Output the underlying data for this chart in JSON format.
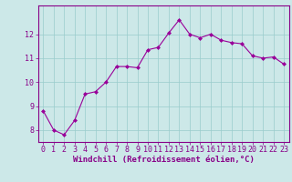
{
  "x": [
    0,
    1,
    2,
    3,
    4,
    5,
    6,
    7,
    8,
    9,
    10,
    11,
    12,
    13,
    14,
    15,
    16,
    17,
    18,
    19,
    20,
    21,
    22,
    23
  ],
  "y": [
    8.8,
    8.0,
    7.8,
    8.4,
    9.5,
    9.6,
    10.0,
    10.65,
    10.65,
    10.6,
    11.35,
    11.45,
    12.05,
    12.6,
    12.0,
    11.85,
    12.0,
    11.75,
    11.65,
    11.6,
    11.1,
    11.0,
    11.05,
    10.75
  ],
  "line_color": "#990099",
  "marker": "D",
  "markersize": 2.0,
  "linewidth": 0.8,
  "xlabel": "Windchill (Refroidissement éolien,°C)",
  "xlabel_fontsize": 6.5,
  "background_color": "#cce8e8",
  "grid_color": "#99cccc",
  "xlim": [
    -0.5,
    23.5
  ],
  "ylim": [
    7.5,
    13.2
  ],
  "yticks": [
    8,
    9,
    10,
    11,
    12
  ],
  "xticks": [
    0,
    1,
    2,
    3,
    4,
    5,
    6,
    7,
    8,
    9,
    10,
    11,
    12,
    13,
    14,
    15,
    16,
    17,
    18,
    19,
    20,
    21,
    22,
    23
  ],
  "tick_fontsize": 6.0,
  "tick_color": "#880088",
  "spine_color": "#880088"
}
